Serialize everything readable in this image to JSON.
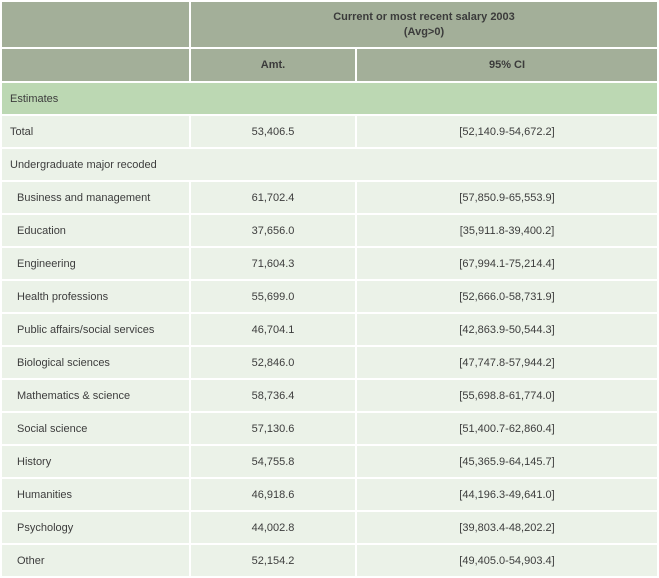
{
  "header": {
    "group_title": "Current or most recent salary 2003",
    "group_subtitle": "(Avg>0)",
    "col_amt": "Amt.",
    "col_ci": "95% CI"
  },
  "rows": [
    {
      "type": "section-green",
      "label": "Estimates"
    },
    {
      "type": "data",
      "indent": 0,
      "label": "Total",
      "amt": "53,406.5",
      "ci": "[52,140.9-54,672.2]"
    },
    {
      "type": "section-pale",
      "label": "Undergraduate major recoded"
    },
    {
      "type": "data",
      "indent": 1,
      "label": "Business and management",
      "amt": "61,702.4",
      "ci": "[57,850.9-65,553.9]"
    },
    {
      "type": "data",
      "indent": 1,
      "label": "Education",
      "amt": "37,656.0",
      "ci": "[35,911.8-39,400.2]"
    },
    {
      "type": "data",
      "indent": 1,
      "label": "Engineering",
      "amt": "71,604.3",
      "ci": "[67,994.1-75,214.4]"
    },
    {
      "type": "data",
      "indent": 1,
      "label": "Health professions",
      "amt": "55,699.0",
      "ci": "[52,666.0-58,731.9]"
    },
    {
      "type": "data",
      "indent": 1,
      "label": "Public affairs/social services",
      "amt": "46,704.1",
      "ci": "[42,863.9-50,544.3]"
    },
    {
      "type": "data",
      "indent": 1,
      "label": "Biological sciences",
      "amt": "52,846.0",
      "ci": "[47,747.8-57,944.2]"
    },
    {
      "type": "data",
      "indent": 1,
      "label": "Mathematics & science",
      "amt": "58,736.4",
      "ci": "[55,698.8-61,774.0]"
    },
    {
      "type": "data",
      "indent": 1,
      "label": "Social science",
      "amt": "57,130.6",
      "ci": "[51,400.7-62,860.4]"
    },
    {
      "type": "data",
      "indent": 1,
      "label": "History",
      "amt": "54,755.8",
      "ci": "[45,365.9-64,145.7]"
    },
    {
      "type": "data",
      "indent": 1,
      "label": "Humanities",
      "amt": "46,918.6",
      "ci": "[44,196.3-49,641.0]"
    },
    {
      "type": "data",
      "indent": 1,
      "label": "Psychology",
      "amt": "44,002.8",
      "ci": "[39,803.4-48,202.2]"
    },
    {
      "type": "data",
      "indent": 1,
      "label": "Other",
      "amt": "52,154.2",
      "ci": "[49,405.0-54,903.4]"
    }
  ],
  "colors": {
    "header_bg": "#a3af99",
    "section_bg": "#bcd8b3",
    "row_bg": "#ebf2e8",
    "border": "#ffffff",
    "text": "#3d3d3d"
  },
  "chart_data": {
    "type": "table",
    "title": "Current or most recent salary 2003",
    "subtitle": "(Avg>0)",
    "columns": [
      "",
      "Amt.",
      "95% CI"
    ],
    "section_headers": [
      "Estimates",
      "Undergraduate major recoded"
    ],
    "rows": [
      {
        "category": "Total",
        "amt": 53406.5,
        "ci_low": 52140.9,
        "ci_high": 54672.2
      },
      {
        "category": "Business and management",
        "amt": 61702.4,
        "ci_low": 57850.9,
        "ci_high": 65553.9
      },
      {
        "category": "Education",
        "amt": 37656.0,
        "ci_low": 35911.8,
        "ci_high": 39400.2
      },
      {
        "category": "Engineering",
        "amt": 71604.3,
        "ci_low": 67994.1,
        "ci_high": 75214.4
      },
      {
        "category": "Health professions",
        "amt": 55699.0,
        "ci_low": 52666.0,
        "ci_high": 58731.9
      },
      {
        "category": "Public affairs/social services",
        "amt": 46704.1,
        "ci_low": 42863.9,
        "ci_high": 50544.3
      },
      {
        "category": "Biological sciences",
        "amt": 52846.0,
        "ci_low": 47747.8,
        "ci_high": 57944.2
      },
      {
        "category": "Mathematics & science",
        "amt": 58736.4,
        "ci_low": 55698.8,
        "ci_high": 61774.0
      },
      {
        "category": "Social science",
        "amt": 57130.6,
        "ci_low": 51400.7,
        "ci_high": 62860.4
      },
      {
        "category": "History",
        "amt": 54755.8,
        "ci_low": 45365.9,
        "ci_high": 64145.7
      },
      {
        "category": "Humanities",
        "amt": 46918.6,
        "ci_low": 44196.3,
        "ci_high": 49641.0
      },
      {
        "category": "Psychology",
        "amt": 44002.8,
        "ci_low": 39803.4,
        "ci_high": 48202.2
      },
      {
        "category": "Other",
        "amt": 52154.2,
        "ci_low": 49405.0,
        "ci_high": 54903.4
      }
    ]
  }
}
